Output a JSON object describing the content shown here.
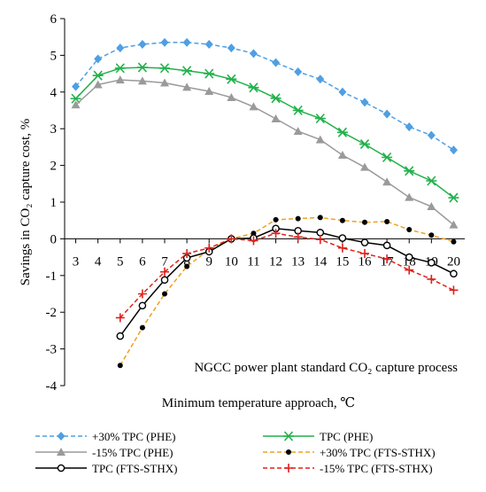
{
  "chart_data": {
    "type": "line",
    "title": "",
    "annotation": "NGCC power plant standard CO₂ capture process",
    "xlabel": "Minimum temperature approach, ℃",
    "ylabel": "Savings in CO₂ capture cost, %",
    "xlim": [
      3,
      20
    ],
    "ylim": [
      -4,
      6
    ],
    "x_ticks": [
      3,
      4,
      5,
      6,
      7,
      8,
      9,
      10,
      11,
      12,
      13,
      14,
      15,
      16,
      17,
      18,
      19,
      20
    ],
    "y_ticks": [
      -4,
      -3,
      -2,
      -1,
      0,
      1,
      2,
      3,
      4,
      5,
      6
    ],
    "grid": false,
    "legend_position": "bottom",
    "series": [
      {
        "name": "+30% TPC (PHE)",
        "color": "#4f9fe3",
        "line": "dashed",
        "marker": "diamond",
        "x": [
          3,
          4,
          5,
          6,
          7,
          8,
          9,
          10,
          11,
          12,
          13,
          14,
          15,
          16,
          17,
          18,
          19,
          20
        ],
        "values": [
          4.15,
          4.9,
          5.2,
          5.3,
          5.35,
          5.35,
          5.3,
          5.2,
          5.05,
          4.8,
          4.55,
          4.35,
          4.0,
          3.72,
          3.4,
          3.05,
          2.82,
          2.42
        ]
      },
      {
        "name": "TPC (PHE)",
        "color": "#22b14c",
        "line": "solid",
        "marker": "star",
        "x": [
          3,
          4,
          5,
          6,
          7,
          8,
          9,
          10,
          11,
          12,
          13,
          14,
          15,
          16,
          17,
          18,
          19,
          20
        ],
        "values": [
          3.82,
          4.45,
          4.65,
          4.67,
          4.65,
          4.58,
          4.5,
          4.35,
          4.12,
          3.83,
          3.5,
          3.28,
          2.9,
          2.58,
          2.22,
          1.85,
          1.58,
          1.12
        ]
      },
      {
        "name": "-15% TPC (PHE)",
        "color": "#9a9a9a",
        "line": "solid",
        "marker": "triangle",
        "x": [
          3,
          4,
          5,
          6,
          7,
          8,
          9,
          10,
          11,
          12,
          13,
          14,
          15,
          16,
          17,
          18,
          19,
          20
        ],
        "values": [
          3.65,
          4.2,
          4.33,
          4.3,
          4.25,
          4.13,
          4.02,
          3.85,
          3.6,
          3.27,
          2.93,
          2.7,
          2.28,
          1.95,
          1.55,
          1.13,
          0.88,
          0.38
        ]
      },
      {
        "name": "+30% TPC (FTS-STHX)",
        "color": "#f0a020",
        "line": "dashed",
        "marker": "dot",
        "x": [
          5,
          6,
          7,
          8,
          9,
          10,
          11,
          12,
          13,
          14,
          15,
          16,
          17,
          18,
          19,
          20
        ],
        "values": [
          -3.45,
          -2.42,
          -1.5,
          -0.75,
          -0.3,
          0.0,
          0.15,
          0.52,
          0.55,
          0.58,
          0.5,
          0.45,
          0.47,
          0.25,
          0.1,
          -0.08
        ]
      },
      {
        "name": "TPC (FTS-STHX)",
        "color": "#000000",
        "line": "solid",
        "marker": "circle",
        "x": [
          5,
          6,
          7,
          8,
          9,
          10,
          11,
          12,
          13,
          14,
          15,
          16,
          17,
          18,
          19,
          20
        ],
        "values": [
          -2.65,
          -1.82,
          -1.12,
          -0.52,
          -0.35,
          0.0,
          0.02,
          0.28,
          0.22,
          0.17,
          0.02,
          -0.1,
          -0.18,
          -0.5,
          -0.65,
          -0.95
        ]
      },
      {
        "name": "-15% TPC (FTS-STHX)",
        "color": "#e0201b",
        "line": "dashed",
        "marker": "plus",
        "x": [
          5,
          6,
          7,
          8,
          9,
          10,
          11,
          12,
          13,
          14,
          15,
          16,
          17,
          18,
          19,
          20
        ],
        "values": [
          -2.15,
          -1.5,
          -0.9,
          -0.4,
          -0.25,
          0.0,
          -0.05,
          0.15,
          0.05,
          -0.02,
          -0.25,
          -0.4,
          -0.55,
          -0.85,
          -1.1,
          -1.4
        ]
      }
    ]
  }
}
